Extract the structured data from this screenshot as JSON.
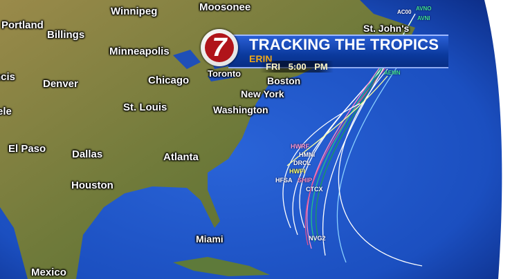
{
  "header": {
    "title": "TRACKING THE TROPICS",
    "storm": "ERIN",
    "day": "FRI",
    "time": "5:00 PM",
    "logo_text": "7"
  },
  "cities": [
    {
      "name": "Winnipeg"
    },
    {
      "name": "Moosonee"
    },
    {
      "name": "Portland"
    },
    {
      "name": "Billings"
    },
    {
      "name": "Minneapolis"
    },
    {
      "name": "St. John's"
    },
    {
      "name": "Toronto"
    },
    {
      "name": "Boston"
    },
    {
      "name": "Denver"
    },
    {
      "name": "Chicago"
    },
    {
      "name": "New York"
    },
    {
      "name": "St. Louis"
    },
    {
      "name": "Washington"
    },
    {
      "name": "El Paso"
    },
    {
      "name": "Dallas"
    },
    {
      "name": "Atlanta"
    },
    {
      "name": "Houston"
    },
    {
      "name": "Miami"
    },
    {
      "name": "Mexico"
    },
    {
      "name": "ncis"
    },
    {
      "name": "ele"
    }
  ],
  "models": [
    "HWRF",
    "HMNI",
    "DRCL",
    "HWFI",
    "HFSA",
    "SHIP",
    "CTCX",
    "NVG2",
    "AC00",
    "AVNO",
    "AVNI",
    "AEMN"
  ],
  "colors": {
    "ocean": "#1f55c8",
    "land": "#8a7a3c",
    "banner": "#0b3a9e",
    "storm_name": "#f0a818",
    "logo_red": "#b0141a"
  }
}
